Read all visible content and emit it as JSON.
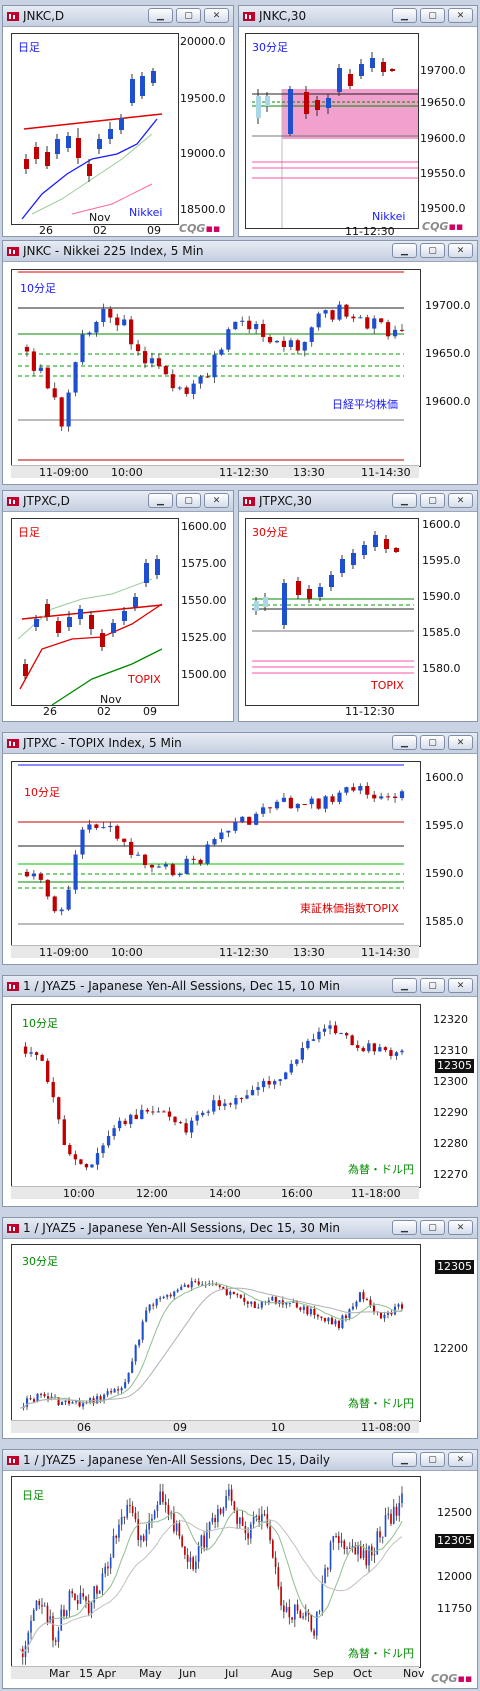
{
  "colors": {
    "up": "#1f4fd1",
    "down": "#c00000",
    "pink": "#f2a0cd",
    "red": "#e00000",
    "green": "#008a00",
    "blue": "#1a1aff"
  },
  "w1": {
    "title": "JNKC,D",
    "label": "日足",
    "source": "Nikkei",
    "yticks": [
      "20000.0",
      "19500.0",
      "19000.0",
      "18500.0"
    ],
    "xticks": [
      "26",
      "02",
      "09"
    ],
    "month": "Nov",
    "logo_a": "CQG",
    "logo_b": "▪▪"
  },
  "w2": {
    "title": "JNKC,30",
    "label": "30分足",
    "source": "Nikkei",
    "yticks": [
      "19700.0",
      "19650.0",
      "19600.0",
      "19550.0",
      "19500.0"
    ],
    "xticks": [
      "11-12:30"
    ],
    "logo_a": "CQG",
    "logo_b": "▪▪"
  },
  "w3": {
    "title": "JNKC - Nikkei 225 Index, 5 Min",
    "label": "10分足",
    "source": "日経平均株価",
    "yticks": [
      "19700.0",
      "19650.0",
      "19600.0"
    ],
    "xticks": [
      "11-09:00",
      "10:00",
      "11-12:30",
      "13:30",
      "11-14:30"
    ]
  },
  "w4": {
    "title": "JTPXC,D",
    "label": "日足",
    "source": "TOPIX",
    "yticks": [
      "1600.00",
      "1575.00",
      "1550.00",
      "1525.00",
      "1500.00"
    ],
    "xticks": [
      "26",
      "02",
      "09"
    ],
    "month": "Nov"
  },
  "w5": {
    "title": "JTPXC,30",
    "label": "30分足",
    "source": "TOPIX",
    "yticks": [
      "1600.0",
      "1595.0",
      "1590.0",
      "1585.0",
      "1580.0"
    ],
    "xticks": [
      "11-12:30"
    ]
  },
  "w6": {
    "title": "JTPXC - TOPIX Index, 5 Min",
    "label": "10分足",
    "source": "東証株価指数TOPIX",
    "yticks": [
      "1600.0",
      "1595.0",
      "1590.0",
      "1585.0"
    ],
    "xticks": [
      "11-09:00",
      "10:00",
      "11-12:30",
      "13:30",
      "11-14:30"
    ]
  },
  "w7": {
    "title": "1 / JYAZ5 - Japanese Yen-All Sessions, Dec 15, 10 Min",
    "label": "10分足",
    "source": "為替・ドル円",
    "yticks": [
      "12320",
      "12310",
      "12300",
      "12290",
      "12280",
      "12270"
    ],
    "price": "12305",
    "xticks": [
      "10:00",
      "12:00",
      "14:00",
      "16:00",
      "11-18:00"
    ]
  },
  "w8": {
    "title": "1 / JYAZ5 - Japanese Yen-All Sessions, Dec 15, 30 Min",
    "label": "30分足",
    "source": "為替・ドル円",
    "yticks": [
      "12200"
    ],
    "price": "12305",
    "xticks": [
      "06",
      "09",
      "10",
      "11-08:00"
    ]
  },
  "w9": {
    "title": "1 / JYAZ5 - Japanese Yen-All Sessions, Dec 15, Daily",
    "label": "日足",
    "source": "為替・ドル円",
    "yticks": [
      "12500",
      "12250",
      "12000",
      "11750"
    ],
    "price": "12305",
    "xticks": [
      "Mar",
      "15",
      "Apr",
      "May",
      "Jun",
      "Jul",
      "Aug",
      "Sep",
      "Oct",
      "Nov"
    ],
    "logo_a": "CQG",
    "logo_b": "▪▪"
  }
}
